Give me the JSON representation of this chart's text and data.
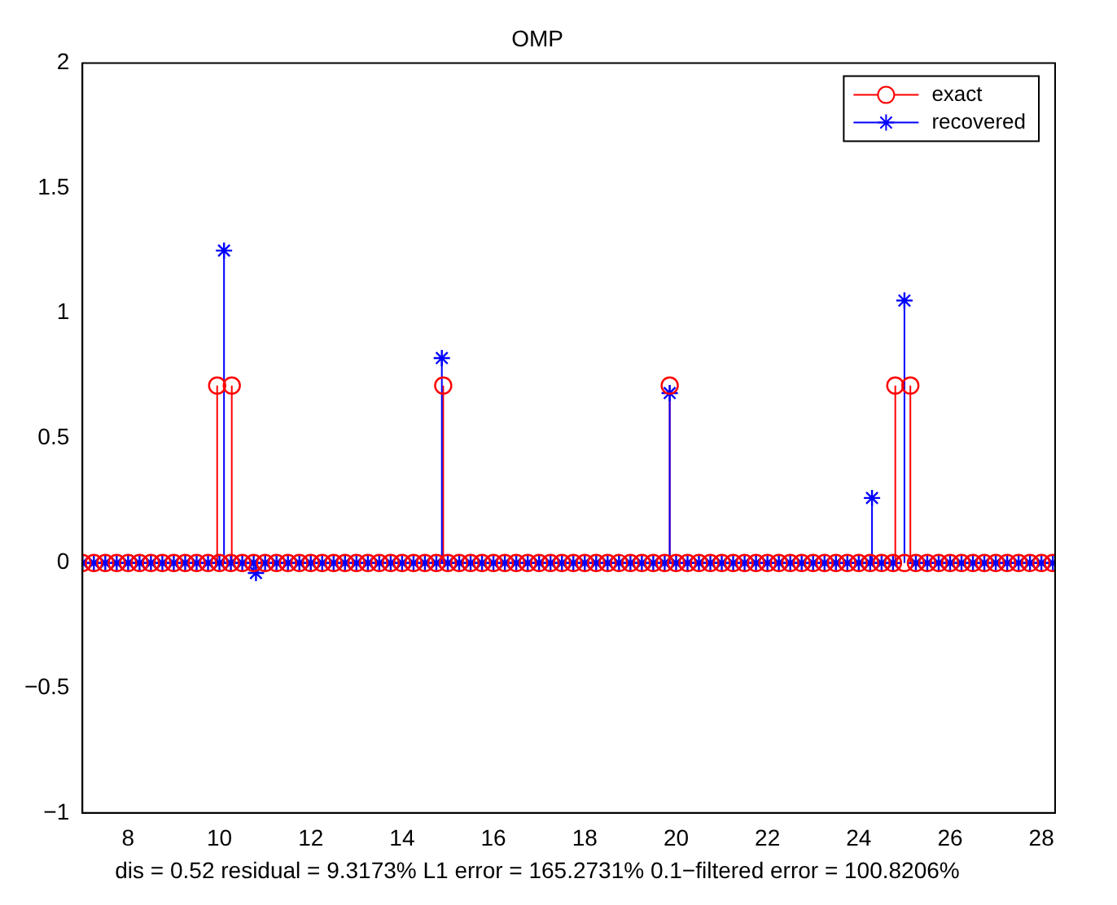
{
  "chart_data": {
    "type": "lollipop",
    "title": "OMP",
    "annotations": [
      "dis = 0.52 residual = 9.3173% L1 error = 165.2731% 0.1−filtered error = 100.8206%"
    ],
    "xlim": [
      7,
      28.3
    ],
    "xticks": [
      8,
      10,
      12,
      14,
      16,
      18,
      20,
      22,
      24,
      26,
      28
    ],
    "ylim": [
      -1,
      2
    ],
    "yticks": [
      -1,
      -0.5,
      0,
      0.5,
      1,
      1.5,
      2
    ],
    "grid": false,
    "legend": "top right",
    "series": [
      {
        "name": "exact",
        "color": "#ff0000",
        "marker": "circle",
        "x": [
          7,
          7.25,
          7.5,
          7.75,
          8,
          8.25,
          8.5,
          8.75,
          9,
          9.25,
          9.5,
          9.75,
          9.95,
          10,
          10.25,
          10.27,
          10.5,
          10.75,
          11,
          11.25,
          11.5,
          11.75,
          12,
          12.25,
          12.5,
          12.75,
          13,
          13.25,
          13.5,
          13.75,
          14,
          14.25,
          14.5,
          14.75,
          14.9,
          15,
          15.25,
          15.5,
          15.75,
          16,
          16.25,
          16.5,
          16.75,
          17,
          17.25,
          17.5,
          17.75,
          18,
          18.25,
          18.5,
          18.75,
          19,
          19.25,
          19.5,
          19.75,
          19.86,
          20,
          20.25,
          20.5,
          20.75,
          21,
          21.25,
          21.5,
          21.75,
          22,
          22.25,
          22.5,
          22.75,
          23,
          23.25,
          23.5,
          23.75,
          24,
          24.25,
          24.5,
          24.75,
          24.8,
          25,
          25.13,
          25.25,
          25.5,
          25.75,
          26,
          26.25,
          26.5,
          26.75,
          27,
          27.25,
          27.5,
          27.75,
          28,
          28.25
        ],
        "values": [
          0,
          0,
          0,
          0,
          0,
          0,
          0,
          0,
          0,
          0,
          0,
          0,
          0.71,
          0,
          0,
          0.71,
          0,
          0,
          0,
          0,
          0,
          0,
          0,
          0,
          0,
          0,
          0,
          0,
          0,
          0,
          0,
          0,
          0,
          0,
          0.71,
          0,
          0,
          0,
          0,
          0,
          0,
          0,
          0,
          0,
          0,
          0,
          0,
          0,
          0,
          0,
          0,
          0,
          0,
          0,
          0,
          0.71,
          0,
          0,
          0,
          0,
          0,
          0,
          0,
          0,
          0,
          0,
          0,
          0,
          0,
          0,
          0,
          0,
          0,
          0,
          0,
          0,
          0.71,
          0,
          0.71,
          0,
          0,
          0,
          0,
          0,
          0,
          0,
          0,
          0,
          0,
          0,
          0,
          0
        ]
      },
      {
        "name": "recovered",
        "color": "#0000ff",
        "marker": "cross",
        "x": [
          7,
          7.25,
          7.5,
          7.75,
          8,
          8.25,
          8.5,
          8.75,
          9,
          9.25,
          9.5,
          9.75,
          10,
          10.1,
          10.25,
          10.5,
          10.75,
          10.8,
          11,
          11.25,
          11.5,
          11.75,
          12,
          12.25,
          12.5,
          12.75,
          13,
          13.25,
          13.5,
          13.75,
          14,
          14.25,
          14.5,
          14.75,
          14.87,
          15,
          15.25,
          15.5,
          15.75,
          16,
          16.25,
          16.5,
          16.75,
          17,
          17.25,
          17.5,
          17.75,
          18,
          18.25,
          18.5,
          18.75,
          19,
          19.25,
          19.5,
          19.75,
          19.86,
          20,
          20.25,
          20.5,
          20.75,
          21,
          21.25,
          21.5,
          21.75,
          22,
          22.25,
          22.5,
          22.75,
          23,
          23.25,
          23.5,
          23.75,
          24,
          24.25,
          24.29,
          24.5,
          24.75,
          25,
          25.25,
          25.5,
          25.75,
          26,
          26.25,
          26.5,
          26.75,
          27,
          27.25,
          27.5,
          27.75,
          28,
          28.25
        ],
        "values": [
          0,
          0,
          0,
          0,
          0,
          0,
          0,
          0,
          0,
          0,
          0,
          0,
          0,
          1.25,
          0,
          0,
          0,
          -0.04,
          0,
          0,
          0,
          0,
          0,
          0,
          0,
          0,
          0,
          0,
          0,
          0,
          0,
          0,
          0,
          0,
          0.82,
          0,
          0,
          0,
          0,
          0,
          0,
          0,
          0,
          0,
          0,
          0,
          0,
          0,
          0,
          0,
          0,
          0,
          0,
          0,
          0,
          0.68,
          0,
          0,
          0,
          0,
          0,
          0,
          0,
          0,
          0,
          0,
          0,
          0,
          0,
          0,
          0,
          0,
          0,
          0,
          0.26,
          0,
          0,
          1.05,
          0,
          0,
          0,
          0,
          0,
          0,
          0,
          0,
          0,
          0,
          0,
          0,
          0
        ]
      }
    ]
  }
}
